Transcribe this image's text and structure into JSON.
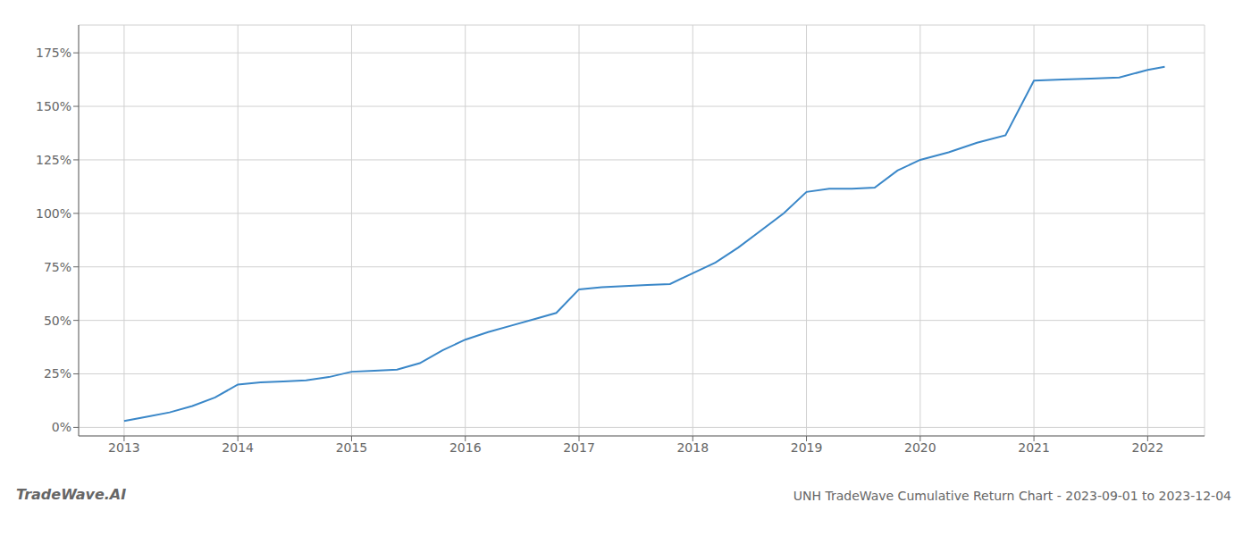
{
  "chart_data": {
    "type": "line",
    "title": "UNH TradeWave Cumulative Return Chart - 2023-09-01 to 2023-12-04",
    "annotations": [
      "TradeWave.AI"
    ],
    "color": "#3a87c8",
    "grid": true,
    "x": [
      2013.0,
      2013.2,
      2013.4,
      2013.6,
      2013.8,
      2014.0,
      2014.2,
      2014.4,
      2014.6,
      2014.8,
      2015.0,
      2015.2,
      2015.4,
      2015.6,
      2015.8,
      2016.0,
      2016.2,
      2016.4,
      2016.6,
      2016.8,
      2017.0,
      2017.2,
      2017.4,
      2017.6,
      2017.8,
      2018.0,
      2018.2,
      2018.4,
      2018.6,
      2018.8,
      2019.0,
      2019.2,
      2019.4,
      2019.6,
      2019.8,
      2020.0,
      2020.25,
      2020.5,
      2020.75,
      2021.0,
      2021.25,
      2021.5,
      2021.75,
      2022.0,
      2022.15
    ],
    "values": [
      0.03,
      0.05,
      0.07,
      0.1,
      0.14,
      0.2,
      0.21,
      0.215,
      0.22,
      0.235,
      0.26,
      0.265,
      0.27,
      0.3,
      0.36,
      0.41,
      0.445,
      0.475,
      0.505,
      0.535,
      0.645,
      0.655,
      0.66,
      0.665,
      0.67,
      0.72,
      0.77,
      0.84,
      0.92,
      1.0,
      1.1,
      1.115,
      1.115,
      1.12,
      1.2,
      1.25,
      1.285,
      1.33,
      1.365,
      1.62,
      1.625,
      1.63,
      1.635,
      1.67,
      1.685
    ],
    "xlim": [
      2012.6,
      2022.5
    ],
    "xticks": [
      2013,
      2014,
      2015,
      2016,
      2017,
      2018,
      2019,
      2020,
      2021,
      2022
    ],
    "ylim": [
      -0.04,
      1.88
    ],
    "yticks": [
      {
        "value": 0.0,
        "label": "0%"
      },
      {
        "value": 0.25,
        "label": "25%"
      },
      {
        "value": 0.5,
        "label": "50%"
      },
      {
        "value": 0.75,
        "label": "75%"
      },
      {
        "value": 1.0,
        "label": "100%"
      },
      {
        "value": 1.25,
        "label": "125%"
      },
      {
        "value": 1.5,
        "label": "150%"
      },
      {
        "value": 1.75,
        "label": "175%"
      }
    ]
  }
}
